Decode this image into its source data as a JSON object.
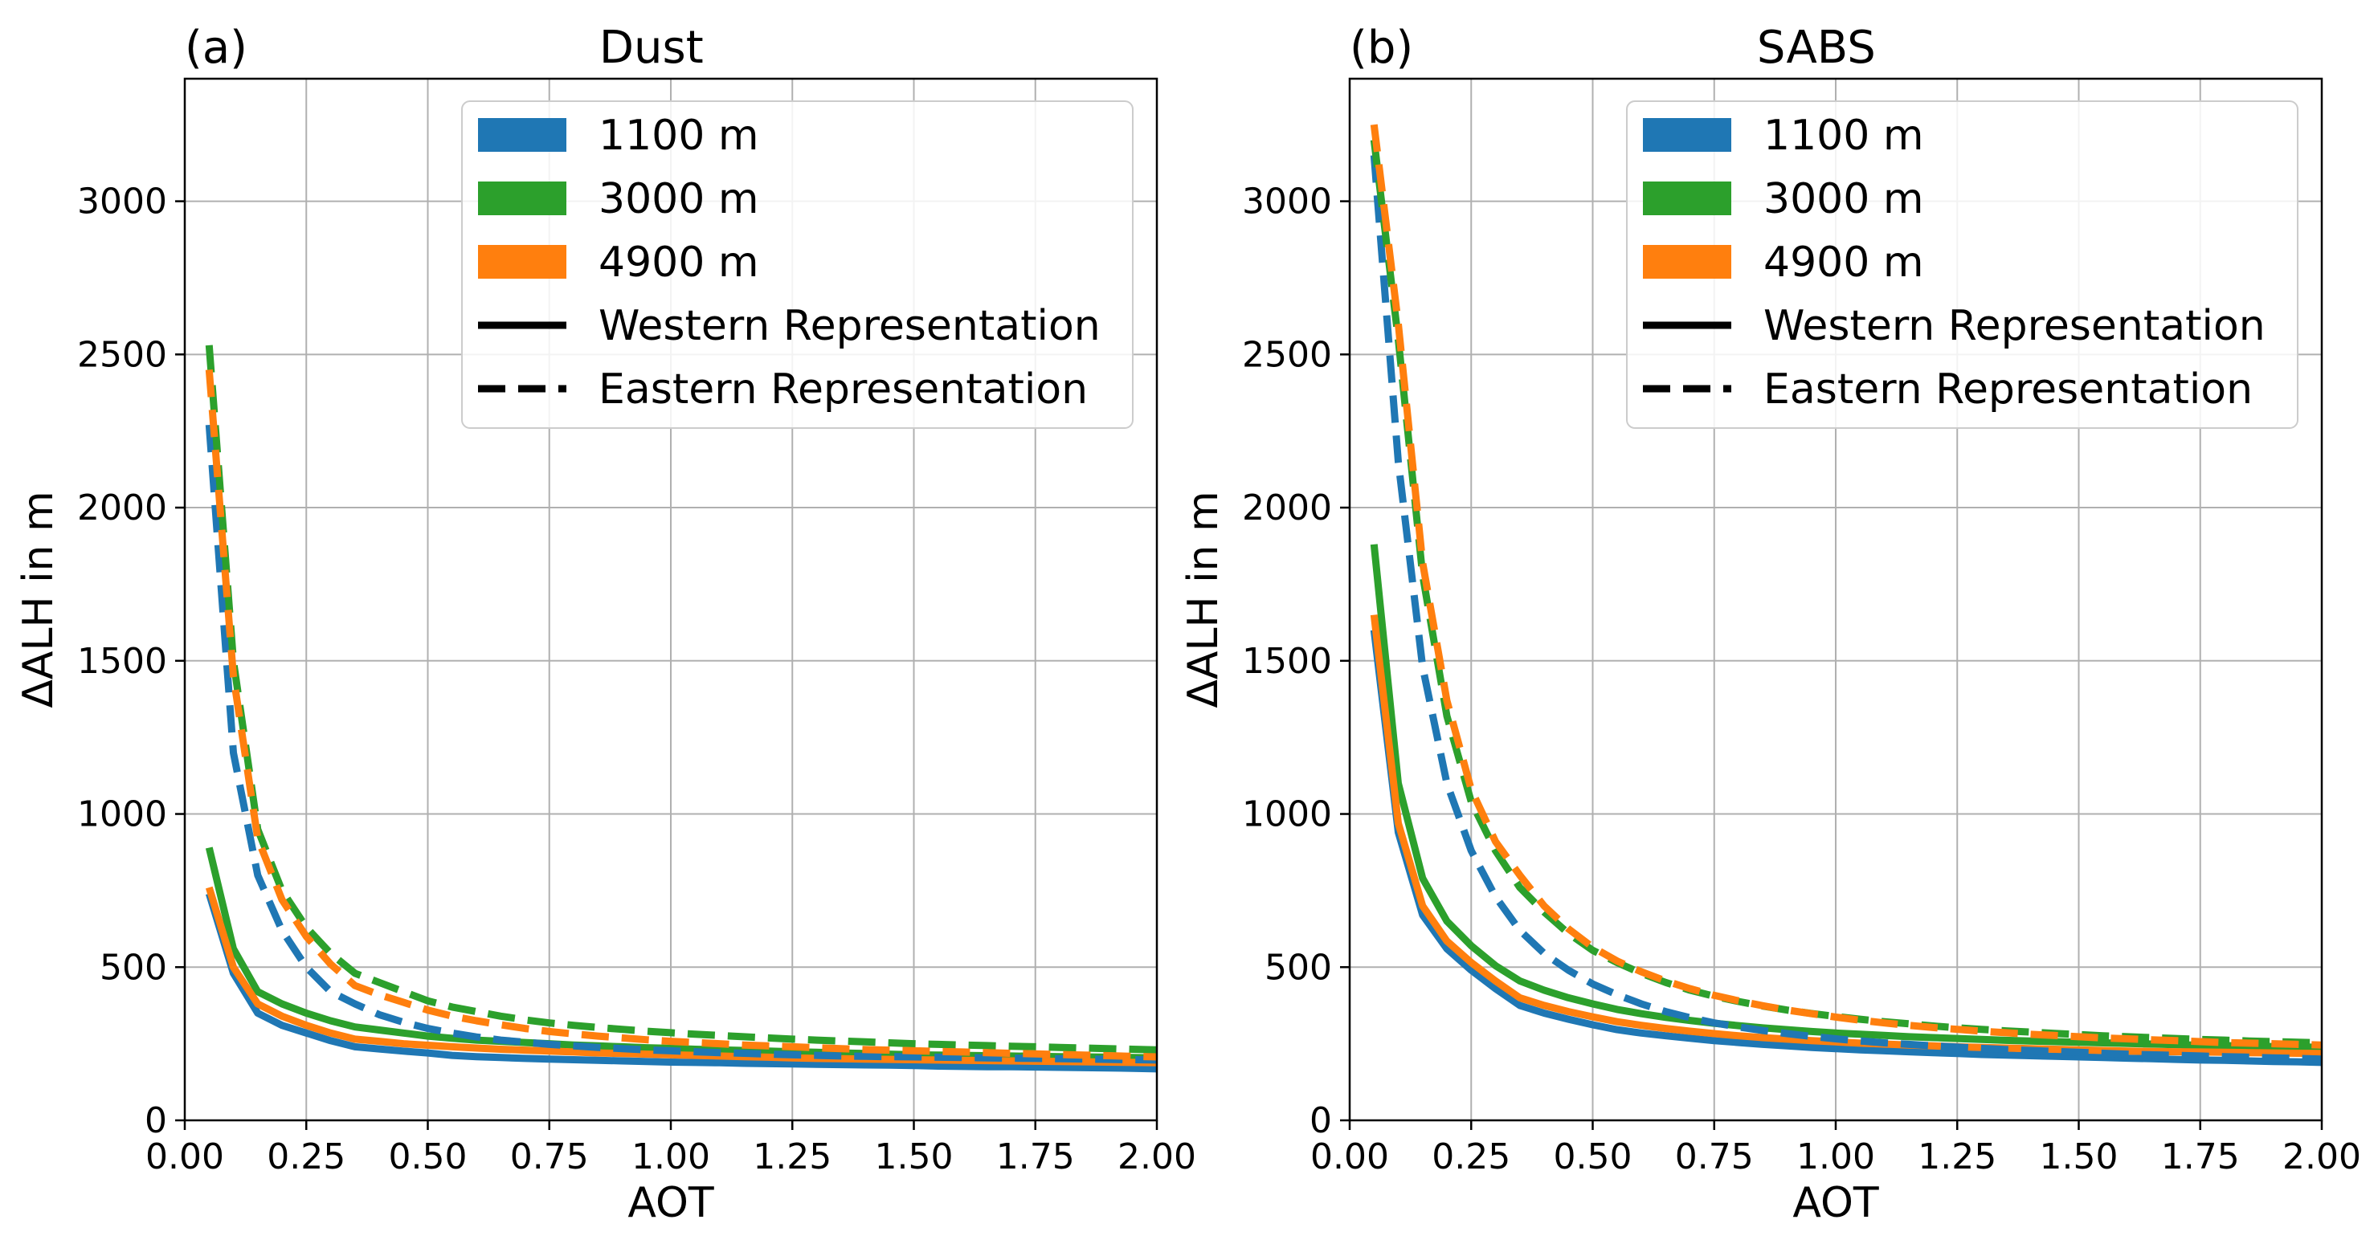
{
  "chart_data": [
    {
      "type": "line",
      "panel_label": "(a)",
      "title": "Dust",
      "xlabel": "AOT",
      "ylabel": "ΔALH in m",
      "xlim": [
        0,
        2.0
      ],
      "ylim": [
        0,
        3400
      ],
      "x_ticks": [
        0,
        0.25,
        0.5,
        0.75,
        1.0,
        1.25,
        1.5,
        1.75,
        2.0
      ],
      "x_tick_labels": [
        "0.00",
        "0.25",
        "0.50",
        "0.75",
        "1.00",
        "1.25",
        "1.50",
        "1.75",
        "2.00"
      ],
      "y_ticks": [
        0,
        500,
        1000,
        1500,
        2000,
        2500,
        3000
      ],
      "y_tick_labels": [
        "0",
        "500",
        "1000",
        "1500",
        "2000",
        "2500",
        "3000"
      ],
      "grid": true,
      "legend_position": "top-right",
      "legend": [
        {
          "label": "1100 m",
          "kind": "patch",
          "color": "#1f77b4"
        },
        {
          "label": "3000 m",
          "kind": "patch",
          "color": "#2ca02c"
        },
        {
          "label": "4900 m",
          "kind": "patch",
          "color": "#ff7f0e"
        },
        {
          "label": "Western Representation",
          "kind": "line",
          "style": "solid",
          "color": "#000000"
        },
        {
          "label": "Eastern Representation",
          "kind": "line",
          "style": "dashed",
          "color": "#000000"
        }
      ],
      "x": [
        0.05,
        0.1,
        0.15,
        0.2,
        0.25,
        0.3,
        0.35,
        0.4,
        0.45,
        0.5,
        0.55,
        0.6,
        0.65,
        0.7,
        0.75,
        0.8,
        0.85,
        0.9,
        0.95,
        1.0,
        1.05,
        1.1,
        1.15,
        1.2,
        1.25,
        1.3,
        1.35,
        1.4,
        1.45,
        1.5,
        1.55,
        1.6,
        1.65,
        1.7,
        1.75,
        1.8,
        1.85,
        1.9,
        1.95,
        2.0
      ],
      "series": [
        {
          "name": "1100 m Western Representation",
          "color": "#1f77b4",
          "style": "solid",
          "values": [
            740,
            480,
            350,
            310,
            285,
            260,
            240,
            233,
            226,
            220,
            212,
            208,
            205,
            202,
            200,
            198,
            196,
            194,
            192,
            190,
            189,
            188,
            186,
            185,
            184,
            183,
            182,
            181,
            180,
            179,
            177,
            176,
            175,
            175,
            174,
            173,
            172,
            171,
            170,
            168
          ]
        },
        {
          "name": "3000 m Western Representation",
          "color": "#2ca02c",
          "style": "solid",
          "values": [
            890,
            560,
            420,
            380,
            350,
            325,
            305,
            295,
            285,
            275,
            268,
            262,
            258,
            254,
            250,
            246,
            243,
            240,
            237,
            235,
            232,
            230,
            228,
            226,
            224,
            222,
            220,
            218,
            216,
            214,
            213,
            212,
            211,
            210,
            209,
            208,
            207,
            206,
            205,
            204
          ]
        },
        {
          "name": "4900 m Western Representation",
          "color": "#ff7f0e",
          "style": "solid",
          "values": [
            760,
            500,
            380,
            340,
            310,
            285,
            265,
            258,
            250,
            245,
            240,
            236,
            232,
            229,
            226,
            223,
            220,
            218,
            216,
            214,
            212,
            210,
            208,
            206,
            204,
            202,
            201,
            200,
            199,
            198,
            197,
            196,
            195,
            194,
            193,
            192,
            191,
            190,
            189,
            188
          ]
        },
        {
          "name": "1100 m Eastern Representation",
          "color": "#1f77b4",
          "style": "dashed",
          "values": [
            2270,
            1200,
            800,
            620,
            500,
            420,
            380,
            345,
            320,
            300,
            285,
            272,
            262,
            255,
            248,
            243,
            238,
            234,
            230,
            227,
            224,
            221,
            219,
            216,
            214,
            212,
            210,
            209,
            208,
            207,
            206,
            205,
            204,
            203,
            202,
            201,
            200,
            199,
            198,
            197
          ]
        },
        {
          "name": "3000 m Eastern Representation",
          "color": "#2ca02c",
          "style": "dashed",
          "values": [
            2530,
            1500,
            950,
            750,
            630,
            545,
            480,
            450,
            420,
            390,
            370,
            355,
            340,
            328,
            318,
            310,
            303,
            297,
            291,
            286,
            281,
            277,
            273,
            269,
            265,
            262,
            259,
            256,
            253,
            250,
            248,
            246,
            244,
            242,
            240,
            238,
            236,
            234,
            232,
            230
          ]
        },
        {
          "name": "4900 m Eastern Representation",
          "color": "#ff7f0e",
          "style": "dashed",
          "values": [
            2450,
            1450,
            920,
            720,
            600,
            510,
            440,
            410,
            385,
            360,
            340,
            325,
            312,
            300,
            290,
            282,
            275,
            269,
            263,
            258,
            254,
            250,
            246,
            243,
            240,
            237,
            234,
            231,
            229,
            227,
            225,
            223,
            221,
            219,
            217,
            215,
            213,
            211,
            209,
            207
          ]
        }
      ]
    },
    {
      "type": "line",
      "panel_label": "(b)",
      "title": "SABS",
      "xlabel": "AOT",
      "ylabel": "ΔALH in m",
      "xlim": [
        0,
        2.0
      ],
      "ylim": [
        0,
        3400
      ],
      "x_ticks": [
        0,
        0.25,
        0.5,
        0.75,
        1.0,
        1.25,
        1.5,
        1.75,
        2.0
      ],
      "x_tick_labels": [
        "0.00",
        "0.25",
        "0.50",
        "0.75",
        "1.00",
        "1.25",
        "1.50",
        "1.75",
        "2.00"
      ],
      "y_ticks": [
        0,
        500,
        1000,
        1500,
        2000,
        2500,
        3000
      ],
      "y_tick_labels": [
        "0",
        "500",
        "1000",
        "1500",
        "2000",
        "2500",
        "3000"
      ],
      "grid": true,
      "legend_position": "top-right",
      "legend": [
        {
          "label": "1100 m",
          "kind": "patch",
          "color": "#1f77b4"
        },
        {
          "label": "3000 m",
          "kind": "patch",
          "color": "#2ca02c"
        },
        {
          "label": "4900 m",
          "kind": "patch",
          "color": "#ff7f0e"
        },
        {
          "label": "Western Representation",
          "kind": "line",
          "style": "solid",
          "color": "#000000"
        },
        {
          "label": "Eastern Representation",
          "kind": "line",
          "style": "dashed",
          "color": "#000000"
        }
      ],
      "x": [
        0.05,
        0.1,
        0.15,
        0.2,
        0.25,
        0.3,
        0.35,
        0.4,
        0.45,
        0.5,
        0.55,
        0.6,
        0.65,
        0.7,
        0.75,
        0.8,
        0.85,
        0.9,
        0.95,
        1.0,
        1.05,
        1.1,
        1.15,
        1.2,
        1.25,
        1.3,
        1.35,
        1.4,
        1.45,
        1.5,
        1.55,
        1.6,
        1.65,
        1.7,
        1.75,
        1.8,
        1.85,
        1.9,
        1.95,
        2.0
      ],
      "series": [
        {
          "name": "1100 m Western Representation",
          "color": "#1f77b4",
          "style": "solid",
          "values": [
            1600,
            940,
            670,
            560,
            490,
            430,
            375,
            350,
            330,
            312,
            296,
            285,
            276,
            268,
            260,
            254,
            248,
            243,
            238,
            234,
            230,
            227,
            224,
            221,
            218,
            215,
            213,
            211,
            209,
            207,
            205,
            203,
            201,
            199,
            197,
            196,
            194,
            192,
            191,
            189
          ]
        },
        {
          "name": "3000 m Western Representation",
          "color": "#2ca02c",
          "style": "solid",
          "values": [
            1880,
            1100,
            790,
            650,
            570,
            505,
            455,
            425,
            400,
            380,
            362,
            348,
            336,
            326,
            317,
            309,
            302,
            296,
            290,
            285,
            281,
            277,
            273,
            270,
            267,
            264,
            261,
            259,
            257,
            255,
            253,
            251,
            249,
            247,
            245,
            244,
            242,
            241,
            240,
            238
          ]
        },
        {
          "name": "4900 m Western Representation",
          "color": "#ff7f0e",
          "style": "solid",
          "values": [
            1650,
            970,
            700,
            585,
            515,
            455,
            400,
            375,
            355,
            338,
            322,
            310,
            300,
            291,
            283,
            276,
            270,
            265,
            260,
            256,
            252,
            249,
            246,
            243,
            240,
            238,
            236,
            234,
            232,
            230,
            228,
            226,
            225,
            224,
            223,
            222,
            221,
            220,
            219,
            218
          ]
        },
        {
          "name": "1100 m Eastern Representation",
          "color": "#1f77b4",
          "style": "dashed",
          "values": [
            3150,
            2150,
            1480,
            1100,
            880,
            730,
            620,
            545,
            490,
            445,
            410,
            380,
            355,
            335,
            318,
            305,
            293,
            283,
            274,
            266,
            259,
            253,
            248,
            243,
            239,
            235,
            231,
            228,
            225,
            222,
            219,
            216,
            214,
            212,
            210,
            208,
            206,
            204,
            202,
            200
          ]
        },
        {
          "name": "3000 m Eastern Representation",
          "color": "#2ca02c",
          "style": "dashed",
          "values": [
            3200,
            2550,
            1780,
            1320,
            1040,
            880,
            760,
            680,
            610,
            555,
            515,
            480,
            450,
            425,
            405,
            388,
            373,
            360,
            349,
            339,
            330,
            322,
            315,
            308,
            302,
            297,
            292,
            288,
            284,
            280,
            276,
            273,
            270,
            267,
            264,
            262,
            259,
            257,
            255,
            253
          ]
        },
        {
          "name": "4900 m Eastern Representation",
          "color": "#ff7f0e",
          "style": "dashed",
          "values": [
            3250,
            2600,
            1820,
            1370,
            1080,
            910,
            800,
            700,
            625,
            565,
            520,
            485,
            455,
            430,
            408,
            390,
            374,
            360,
            348,
            337,
            327,
            318,
            310,
            303,
            297,
            291,
            286,
            281,
            277,
            273,
            269,
            266,
            263,
            260,
            257,
            254,
            252,
            250,
            248,
            246
          ]
        }
      ]
    }
  ]
}
